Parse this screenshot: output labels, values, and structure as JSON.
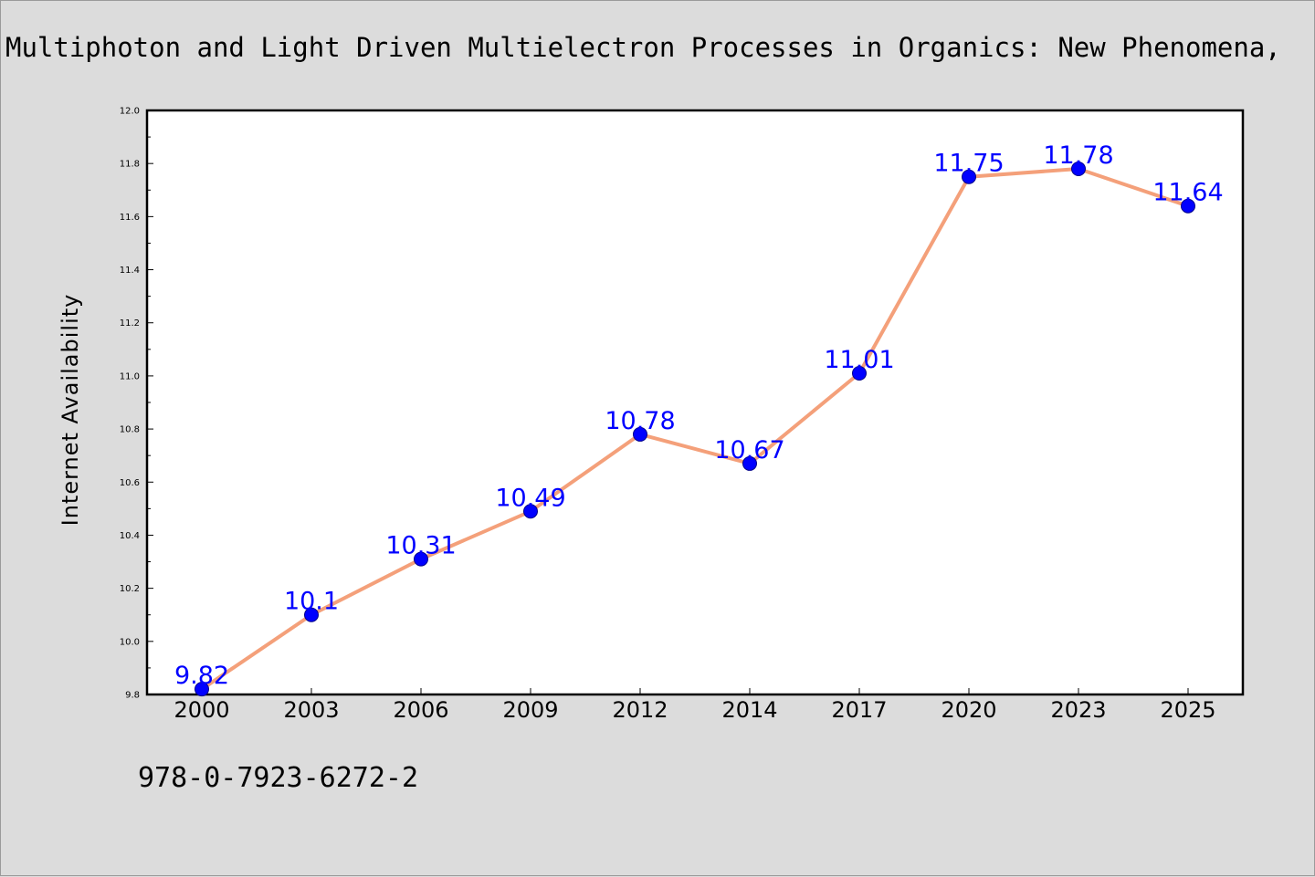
{
  "header": {
    "title": "Multiphoton and Light Driven Multielectron Processes in Organics: New Phenomena,"
  },
  "footer": {
    "isbn": "978-0-7923-6272-2"
  },
  "colors": {
    "line": "#f4a07a",
    "marker": "#0000ff",
    "label": "#0000ff",
    "background": "#dcdcdc",
    "plot_area": "#ffffff"
  },
  "chart_data": {
    "type": "line",
    "title": "",
    "xlabel": "",
    "ylabel": "Internet Availability",
    "categories": [
      "2000",
      "2003",
      "2006",
      "2009",
      "2012",
      "2014",
      "2017",
      "2020",
      "2023",
      "2025"
    ],
    "series": [
      {
        "values": [
          9.82,
          10.1,
          10.31,
          10.49,
          10.78,
          10.67,
          11.01,
          11.75,
          11.78,
          11.64
        ],
        "labels": [
          "9.82",
          "10.1",
          "10.31",
          "10.49",
          "10.78",
          "10.67",
          "11.01",
          "11.75",
          "11.78",
          "11.64"
        ]
      }
    ],
    "ylim": [
      9.8,
      12.0
    ],
    "yticks": [
      "9.8",
      "10.0",
      "10.2",
      "10.4",
      "10.6",
      "10.8",
      "11.0",
      "11.2",
      "11.4",
      "11.6",
      "11.8",
      "12.0"
    ],
    "grid": false,
    "legend": "none"
  }
}
